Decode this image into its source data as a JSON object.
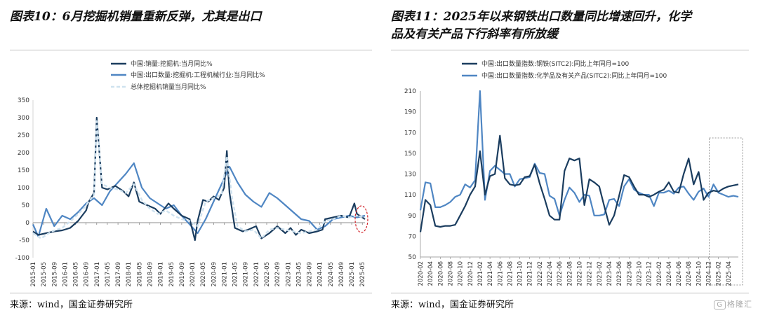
{
  "left": {
    "title": "图表10：6月挖掘机销量重新反弹，尤其是出口",
    "source": "来源：wind，国金证券研究所"
  },
  "right": {
    "title_line1": "图表11：2025年以来钢铁出口数量同比增速回升，化学",
    "title_line2": "品及有关产品下行斜率有所放缓",
    "source": "来源：wind，国金证券研究所"
  },
  "watermark": "格隆汇",
  "watermark_icon": "G",
  "colors": {
    "dark": "#1b3d5f",
    "mid": "#4f86c3",
    "light": "#cfe2ef",
    "highlight": "#d2242a"
  },
  "chart_data": [
    {
      "type": "line",
      "ylim": [
        -100,
        350
      ],
      "yticks": [
        -100,
        -50,
        0,
        50,
        100,
        150,
        200,
        250,
        300,
        350
      ],
      "x_tick_labels": [
        "2015-01",
        "2015-05",
        "2015-09",
        "2016-01",
        "2016-05",
        "2016-09",
        "2017-01",
        "2017-05",
        "2017-09",
        "2018-01",
        "2018-05",
        "2018-09",
        "2019-01",
        "2019-05",
        "2019-09",
        "2020-01",
        "2020-05",
        "2020-09",
        "2021-01",
        "2021-05",
        "2021-09",
        "2022-01",
        "2022-05",
        "2022-09",
        "2023-01",
        "2023-05",
        "2023-09",
        "2024-01",
        "2024-05",
        "2024-09",
        "2025-01",
        "2025-05"
      ],
      "x_start": "2015-01",
      "series": [
        {
          "name": "中国:销量:挖掘机:当月同比%",
          "color": "#1b3d5f",
          "dash": false,
          "points": [
            [
              "2015-01",
              -25
            ],
            [
              "2015-03",
              -35
            ],
            [
              "2015-06",
              -30
            ],
            [
              "2015-09",
              -25
            ],
            [
              "2015-12",
              -22
            ],
            [
              "2016-03",
              -15
            ],
            [
              "2016-06",
              5
            ],
            [
              "2016-09",
              35
            ],
            [
              "2016-10",
              60
            ],
            [
              "2016-12",
              85
            ],
            [
              "2017-01",
              300
            ],
            [
              "2017-02",
              200
            ],
            [
              "2017-03",
              100
            ],
            [
              "2017-05",
              95
            ],
            [
              "2017-08",
              105
            ],
            [
              "2017-11",
              90
            ],
            [
              "2018-01",
              75
            ],
            [
              "2018-03",
              115
            ],
            [
              "2018-05",
              60
            ],
            [
              "2018-08",
              50
            ],
            [
              "2018-11",
              40
            ],
            [
              "2019-01",
              25
            ],
            [
              "2019-04",
              55
            ],
            [
              "2019-06",
              40
            ],
            [
              "2019-09",
              20
            ],
            [
              "2019-12",
              10
            ],
            [
              "2020-02",
              -50
            ],
            [
              "2020-03",
              5
            ],
            [
              "2020-05",
              65
            ],
            [
              "2020-07",
              60
            ],
            [
              "2020-09",
              75
            ],
            [
              "2020-11",
              65
            ],
            [
              "2021-01",
              100
            ],
            [
              "2021-02",
              205
            ],
            [
              "2021-03",
              85
            ],
            [
              "2021-05",
              -15
            ],
            [
              "2021-08",
              -25
            ],
            [
              "2021-10",
              -20
            ],
            [
              "2022-01",
              -10
            ],
            [
              "2022-03",
              -45
            ],
            [
              "2022-06",
              -30
            ],
            [
              "2022-09",
              -10
            ],
            [
              "2022-12",
              -30
            ],
            [
              "2023-02",
              -15
            ],
            [
              "2023-04",
              -35
            ],
            [
              "2023-06",
              -20
            ],
            [
              "2023-09",
              -30
            ],
            [
              "2023-12",
              -25
            ],
            [
              "2024-02",
              -20
            ],
            [
              "2024-03",
              10
            ],
            [
              "2024-06",
              15
            ],
            [
              "2024-09",
              20
            ],
            [
              "2024-12",
              15
            ],
            [
              "2025-02",
              55
            ],
            [
              "2025-03",
              25
            ],
            [
              "2025-06",
              10
            ]
          ]
        },
        {
          "name": "中国:出口数量:挖掘机:工程机械行业:当月同比%",
          "color": "#4f86c3",
          "dash": false,
          "points": [
            [
              "2015-01",
              -5
            ],
            [
              "2015-03",
              -40
            ],
            [
              "2015-06",
              40
            ],
            [
              "2015-09",
              -10
            ],
            [
              "2015-12",
              20
            ],
            [
              "2016-03",
              10
            ],
            [
              "2016-06",
              30
            ],
            [
              "2016-09",
              55
            ],
            [
              "2016-12",
              70
            ],
            [
              "2017-03",
              50
            ],
            [
              "2017-06",
              90
            ],
            [
              "2017-09",
              115
            ],
            [
              "2017-12",
              140
            ],
            [
              "2018-03",
              170
            ],
            [
              "2018-06",
              100
            ],
            [
              "2018-09",
              70
            ],
            [
              "2018-12",
              55
            ],
            [
              "2019-03",
              40
            ],
            [
              "2019-06",
              50
            ],
            [
              "2019-09",
              20
            ],
            [
              "2019-12",
              -5
            ],
            [
              "2020-03",
              -30
            ],
            [
              "2020-06",
              10
            ],
            [
              "2020-09",
              60
            ],
            [
              "2020-12",
              110
            ],
            [
              "2021-03",
              160
            ],
            [
              "2021-06",
              115
            ],
            [
              "2021-09",
              80
            ],
            [
              "2021-12",
              60
            ],
            [
              "2022-03",
              45
            ],
            [
              "2022-06",
              85
            ],
            [
              "2022-09",
              70
            ],
            [
              "2022-12",
              50
            ],
            [
              "2023-03",
              30
            ],
            [
              "2023-06",
              10
            ],
            [
              "2023-09",
              5
            ],
            [
              "2023-12",
              -20
            ],
            [
              "2024-03",
              -10
            ],
            [
              "2024-06",
              10
            ],
            [
              "2024-09",
              15
            ],
            [
              "2024-12",
              20
            ],
            [
              "2025-03",
              15
            ],
            [
              "2025-06",
              20
            ]
          ]
        },
        {
          "name": "总体挖掘机销量当月同比%",
          "color": "#cfe2ef",
          "dash": true,
          "points": [
            [
              "2015-01",
              -30
            ],
            [
              "2015-04",
              -45
            ],
            [
              "2015-08",
              -25
            ],
            [
              "2015-12",
              -15
            ],
            [
              "2016-04",
              10
            ],
            [
              "2016-08",
              40
            ],
            [
              "2016-12",
              80
            ],
            [
              "2017-01",
              290
            ],
            [
              "2017-03",
              110
            ],
            [
              "2017-06",
              100
            ],
            [
              "2017-09",
              95
            ],
            [
              "2017-12",
              85
            ],
            [
              "2018-03",
              110
            ],
            [
              "2018-06",
              65
            ],
            [
              "2018-09",
              40
            ],
            [
              "2018-12",
              25
            ],
            [
              "2019-03",
              35
            ],
            [
              "2019-06",
              20
            ],
            [
              "2019-09",
              10
            ],
            [
              "2019-12",
              5
            ],
            [
              "2020-03",
              -10
            ],
            [
              "2020-06",
              60
            ],
            [
              "2020-09",
              70
            ],
            [
              "2020-12",
              80
            ],
            [
              "2021-02",
              190
            ],
            [
              "2021-04",
              70
            ],
            [
              "2021-06",
              -10
            ],
            [
              "2021-09",
              -25
            ],
            [
              "2021-12",
              -20
            ],
            [
              "2022-03",
              -45
            ],
            [
              "2022-06",
              -20
            ],
            [
              "2022-09",
              -15
            ],
            [
              "2022-12",
              -20
            ],
            [
              "2023-03",
              -25
            ],
            [
              "2023-06",
              -30
            ],
            [
              "2023-09",
              -25
            ],
            [
              "2023-12",
              -20
            ],
            [
              "2024-03",
              5
            ],
            [
              "2024-06",
              10
            ],
            [
              "2024-09",
              20
            ],
            [
              "2024-12",
              15
            ],
            [
              "2025-03",
              20
            ],
            [
              "2025-06",
              15
            ]
          ]
        }
      ]
    },
    {
      "type": "line",
      "ylim": [
        50,
        210
      ],
      "yticks": [
        50,
        70,
        90,
        110,
        130,
        150,
        170,
        190,
        210
      ],
      "x_tick_labels": [
        "2020-02",
        "2020-04",
        "2020-06",
        "2020-08",
        "2020-10",
        "2020-12",
        "2021-02",
        "2021-04",
        "2021-06",
        "2021-08",
        "2021-10",
        "2021-12",
        "2022-02",
        "2022-04",
        "2022-06",
        "2022-08",
        "2022-10",
        "2022-12",
        "2023-02",
        "2023-04",
        "2023-06",
        "2023-08",
        "2023-10",
        "2023-12",
        "2024-02",
        "2024-04",
        "2024-06",
        "2024-08",
        "2024-10",
        "2024-12",
        "2025-02",
        "2025-04"
      ],
      "x_start": "2020-02",
      "highlight_range": [
        "2025-01",
        "2025-06"
      ],
      "series": [
        {
          "name": "中国:出口数量指数:钢铁(SITC2):同比上年同月=100",
          "color": "#1b3d5f",
          "values": [
            74,
            105,
            100,
            80,
            79,
            80,
            80,
            81,
            90,
            99,
            110,
            118,
            152,
            110,
            128,
            130,
            167,
            126,
            120,
            119,
            120,
            127,
            128,
            139,
            121,
            106,
            90,
            86,
            86,
            133,
            145,
            143,
            145,
            100,
            125,
            122,
            118,
            99,
            81,
            90,
            109,
            129,
            127,
            118,
            110,
            110,
            108,
            110,
            113,
            115,
            122,
            113,
            112,
            130,
            145,
            120,
            132,
            105,
            112,
            114,
            113,
            116,
            118,
            119,
            120
          ]
        },
        {
          "name": "中国:出口数量指数:化学品及有关产品(SITC2):同比上年同月=100",
          "color": "#4f86c3",
          "values": [
            95,
            122,
            121,
            98,
            98,
            100,
            103,
            108,
            110,
            120,
            117,
            124,
            210,
            105,
            133,
            138,
            134,
            130,
            130,
            118,
            125,
            126,
            127,
            140,
            131,
            130,
            109,
            106,
            90,
            105,
            117,
            112,
            103,
            110,
            109,
            90,
            90,
            91,
            105,
            106,
            99,
            118,
            125,
            115,
            112,
            110,
            110,
            99,
            112,
            112,
            114,
            111,
            117,
            118,
            111,
            105,
            113,
            116,
            108,
            120,
            112,
            110,
            108,
            109,
            108
          ]
        }
      ]
    }
  ]
}
